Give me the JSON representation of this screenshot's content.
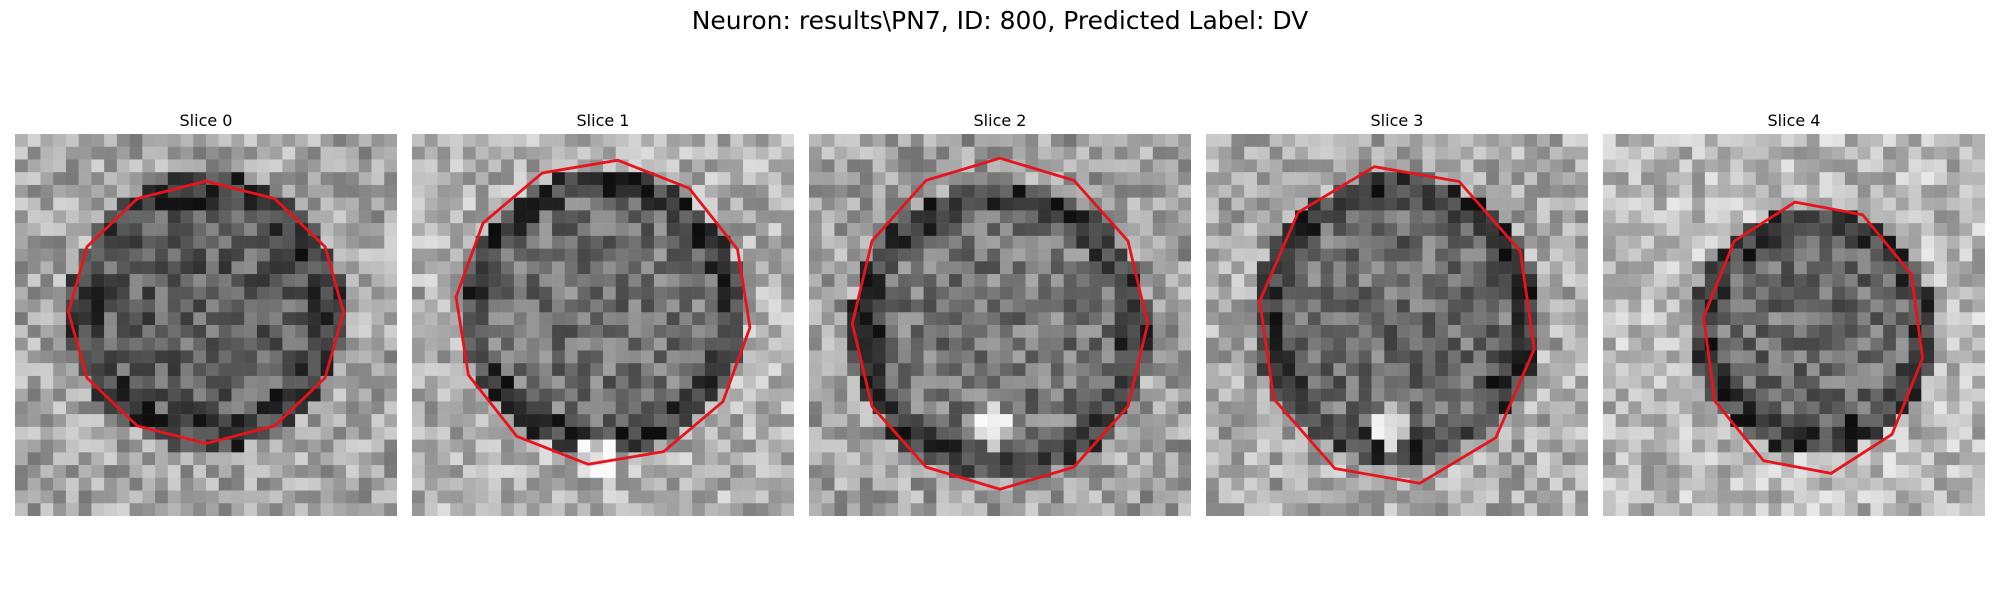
{
  "figure": {
    "title": "Neuron: results\\PN7, ID: 800, Predicted Label: DV"
  },
  "panels": [
    {
      "title": "Slice 0",
      "outline_color": "#e8131b"
    },
    {
      "title": "Slice 1",
      "outline_color": "#e8131b"
    },
    {
      "title": "Slice 2",
      "outline_color": "#e8131b"
    },
    {
      "title": "Slice 3",
      "outline_color": "#e8131b"
    },
    {
      "title": "Slice 4",
      "outline_color": "#e8131b"
    }
  ]
}
